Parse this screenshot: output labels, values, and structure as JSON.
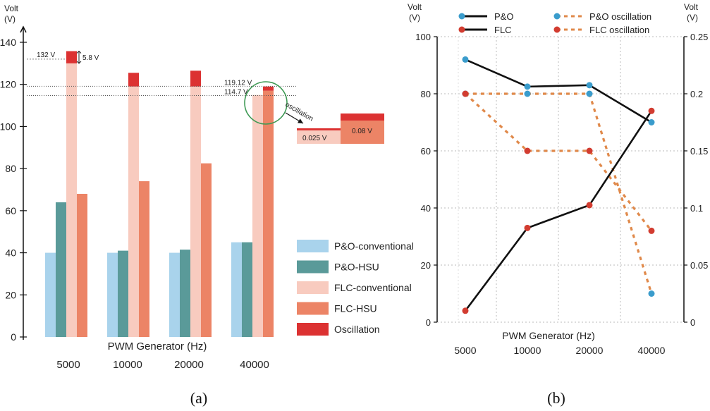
{
  "chart_data": [
    {
      "panel": "(a)",
      "type": "bar",
      "ylabel_lines": [
        "Volt",
        "(V)"
      ],
      "xlabel": "PWM Generator (Hz)",
      "categories": [
        "5000",
        "10000",
        "20000",
        "40000"
      ],
      "ylim": [
        0,
        145
      ],
      "yticks": [
        0,
        20,
        40,
        60,
        80,
        100,
        120,
        140
      ],
      "series": [
        {
          "name": "P&O-conventional",
          "color": "#a9d3ec",
          "values": [
            40,
            40,
            40,
            45
          ]
        },
        {
          "name": "P&O-HSU",
          "color": "#5a9a99",
          "values": [
            64,
            41,
            41.5,
            45
          ]
        },
        {
          "name": "FLC-conventional",
          "color": "#f8cbbf",
          "values": [
            130,
            119,
            119,
            115
          ]
        },
        {
          "name": "FLC-HSU",
          "color": "#ec8466",
          "values": [
            68,
            74,
            82.5,
            117
          ]
        },
        {
          "name": "Oscillation",
          "color": "#dc3232",
          "values": [
            5.8,
            6.5,
            7.5,
            2
          ]
        }
      ],
      "annotations": {
        "ref_132": "132 V",
        "delta_58": "5.8 V",
        "ref_11912": "119.12 V",
        "ref_1147": "114.7 V",
        "oscillation": "oscillation",
        "inset_left": "0.025 V",
        "inset_right": "0.08 V"
      },
      "ref_values": [
        132,
        119.12,
        114.7
      ]
    },
    {
      "panel": "(b)",
      "type": "line",
      "xlabel": "PWM Generator (Hz)",
      "categories": [
        "5000",
        "10000",
        "20000",
        "40000"
      ],
      "left_axis": {
        "label_lines": [
          "Volt",
          "(V)"
        ],
        "ylim": [
          0,
          100
        ],
        "ticks": [
          "0",
          "20",
          "40",
          "60",
          "80",
          "100"
        ],
        "tick_values": [
          0,
          20,
          40,
          60,
          80,
          100
        ]
      },
      "right_axis": {
        "label_lines": [
          "Volt",
          "(V)"
        ],
        "ylim": [
          0,
          0.25
        ],
        "ticks": [
          "0",
          "0.05",
          "0.1",
          "0.15",
          "0.2",
          "0.25"
        ],
        "tick_values": [
          0,
          0.05,
          0.1,
          0.15,
          0.2,
          0.25
        ]
      },
      "series": [
        {
          "name": "P&O",
          "axis": "left",
          "style": "solid",
          "line_color": "#111111",
          "marker_color": "#3a9ccc",
          "values": [
            92,
            82.5,
            83,
            70
          ]
        },
        {
          "name": "FLC",
          "axis": "left",
          "style": "solid",
          "line_color": "#111111",
          "marker_color": "#d23c30",
          "values": [
            4,
            33,
            41,
            74
          ]
        },
        {
          "name": "P&O oscillation",
          "axis": "right",
          "style": "dashed",
          "line_color": "#e0894a",
          "marker_color": "#3a9ccc",
          "values": [
            0.2,
            0.2,
            0.2,
            0.025
          ]
        },
        {
          "name": "FLC oscillation",
          "axis": "right",
          "style": "dashed",
          "line_color": "#e0894a",
          "marker_color": "#d23c30",
          "values": [
            0.2,
            0.15,
            0.15,
            0.08
          ]
        }
      ]
    }
  ],
  "captions": {
    "a": "(a)",
    "b": "(b)"
  }
}
